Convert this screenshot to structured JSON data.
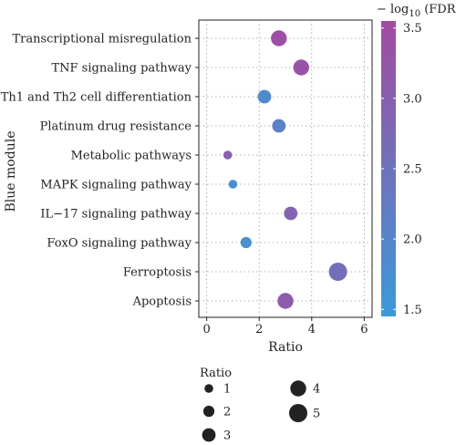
{
  "chart_data": {
    "type": "scatter",
    "xlabel": "Ratio",
    "ylabel": "Blue module",
    "xlim": [
      -0.3,
      6.3
    ],
    "xticks": [
      "0",
      "2",
      "4",
      "6"
    ],
    "grid": true,
    "categories": [
      "Transcriptional misregulation",
      "TNF signaling pathway",
      "Th1 and Th2 cell differentiation",
      "Platinum drug resistance",
      "Metabolic pathways",
      "MAPK signaling pathway",
      "IL−17 signaling pathway",
      "FoxO signaling pathway",
      "Ferroptosis",
      "Apoptosis"
    ],
    "points": [
      {
        "category": "Transcriptional misregulation",
        "x": 2.75,
        "size": 4,
        "neglog10_fdr": 3.4
      },
      {
        "category": "TNF signaling pathway",
        "x": 3.6,
        "size": 4,
        "neglog10_fdr": 3.3
      },
      {
        "category": "Th1 and Th2 cell differentiation",
        "x": 2.2,
        "size": 3,
        "neglog10_fdr": 1.9
      },
      {
        "category": "Platinum drug resistance",
        "x": 2.75,
        "size": 3,
        "neglog10_fdr": 2.1
      },
      {
        "category": "Metabolic pathways",
        "x": 0.8,
        "size": 1,
        "neglog10_fdr": 3.0
      },
      {
        "category": "MAPK signaling pathway",
        "x": 1.0,
        "size": 1,
        "neglog10_fdr": 1.7
      },
      {
        "category": "IL−17 signaling pathway",
        "x": 3.2,
        "size": 3,
        "neglog10_fdr": 2.85
      },
      {
        "category": "FoxO signaling pathway",
        "x": 1.5,
        "size": 2,
        "neglog10_fdr": 1.75
      },
      {
        "category": "Ferroptosis",
        "x": 5.0,
        "size": 5,
        "neglog10_fdr": 2.6
      },
      {
        "category": "Apoptosis",
        "x": 3.0,
        "size": 4,
        "neglog10_fdr": 3.1
      }
    ],
    "color_scale": {
      "title_prefix": "− log",
      "title_sub": "10",
      "title_suffix": " (FDR)",
      "min": 1.45,
      "max": 3.55,
      "ticks": [
        "1.5",
        "2.0",
        "2.5",
        "3.0",
        "3.5"
      ],
      "low_color": "#3a9ad9",
      "high_color": "#a44aa0"
    },
    "size_legend": {
      "title": "Ratio",
      "items": [
        "1",
        "2",
        "3",
        "4",
        "5"
      ]
    }
  }
}
